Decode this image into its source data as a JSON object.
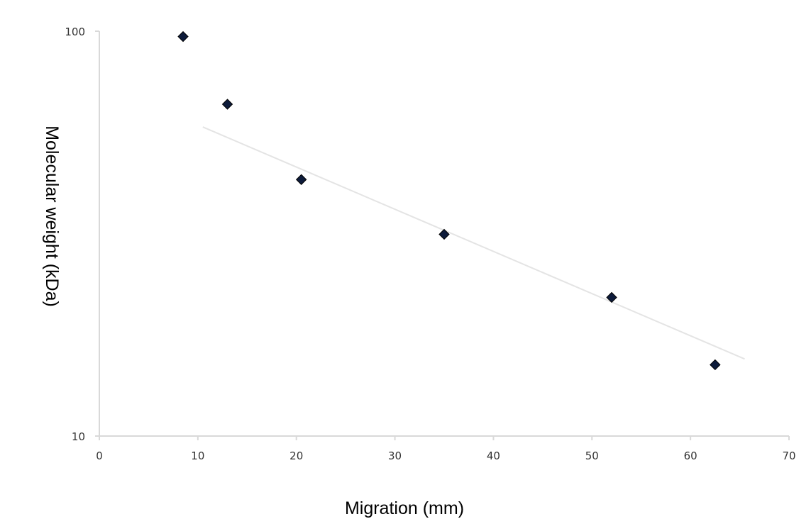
{
  "chart_data": {
    "type": "scatter",
    "title": "",
    "xlabel": "Migration (mm)",
    "ylabel": "Molecular weight (kDa)",
    "xlim": [
      0,
      70
    ],
    "ylim": [
      10,
      100
    ],
    "y_scale": "log",
    "grid": false,
    "legend": "none",
    "x_ticks": [
      "0",
      "10",
      "20",
      "30",
      "40",
      "50",
      "60",
      "70"
    ],
    "y_ticks": [
      "10",
      "100"
    ],
    "series": [
      {
        "x": [
          8.5,
          13,
          20.5,
          35,
          52,
          62.5
        ],
        "y": [
          97,
          66,
          43,
          31.5,
          22,
          15
        ]
      }
    ],
    "trendline": {
      "x": [
        10.5,
        65.5
      ],
      "y": [
        58,
        15.5
      ]
    },
    "colors": {
      "marker": "#0d1b3a",
      "axis": "#d9d9d9",
      "trendline": "#e4e4e4"
    }
  }
}
